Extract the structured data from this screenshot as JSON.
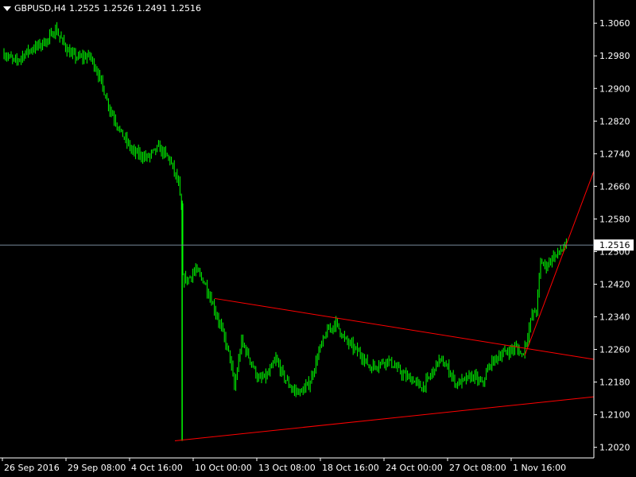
{
  "header": {
    "symbol": "GBPUSD,H4",
    "open": "1.2525",
    "high": "1.2526",
    "low": "1.2491",
    "close": "1.2516",
    "menu_icon": "triangle-down-icon"
  },
  "colors": {
    "background": "#000000",
    "candle": "#00ff00",
    "trendline": "#ff0000",
    "priceline": "#778899",
    "axis": "#ffffff"
  },
  "current_price_label": "1.2516",
  "chart_data": {
    "type": "candlestick",
    "ylim": [
      1.1994,
      1.3113
    ],
    "y_ticks": [
      "1.3060",
      "1.2980",
      "1.2900",
      "1.2820",
      "1.2740",
      "1.2660",
      "1.2580",
      "1.2500",
      "1.2420",
      "1.2340",
      "1.2260",
      "1.2180",
      "1.2100",
      "1.2020"
    ],
    "x_ticks": [
      "26 Sep 2016",
      "29 Sep 08:00",
      "4 Oct 16:00",
      "10 Oct 00:00",
      "13 Oct 08:00",
      "18 Oct 16:00",
      "24 Oct 00:00",
      "27 Oct 08:00",
      "1 Nov 16:00"
    ],
    "current_price": 1.2516,
    "close_path": [
      [
        0,
        1.2985
      ],
      [
        8,
        1.2965
      ],
      [
        16,
        1.299
      ],
      [
        24,
        1.3005
      ],
      [
        31,
        1.302
      ],
      [
        36,
        1.3045
      ],
      [
        40,
        1.302
      ],
      [
        46,
        1.2985
      ],
      [
        52,
        1.2975
      ],
      [
        60,
        1.298
      ],
      [
        66,
        1.2935
      ],
      [
        74,
        1.285
      ],
      [
        82,
        1.279
      ],
      [
        90,
        1.2745
      ],
      [
        100,
        1.273
      ],
      [
        108,
        1.2755
      ],
      [
        116,
        1.2725
      ],
      [
        122,
        1.2665
      ],
      [
        124,
        1.26
      ],
      [
        125,
        1.2435
      ],
      [
        128,
        1.243
      ],
      [
        134,
        1.2455
      ],
      [
        140,
        1.2425
      ],
      [
        146,
        1.237
      ],
      [
        152,
        1.231
      ],
      [
        158,
        1.224
      ],
      [
        161,
        1.2165
      ],
      [
        166,
        1.228
      ],
      [
        172,
        1.2235
      ],
      [
        178,
        1.2185
      ],
      [
        184,
        1.2195
      ],
      [
        190,
        1.2235
      ],
      [
        196,
        1.219
      ],
      [
        202,
        1.216
      ],
      [
        208,
        1.2155
      ],
      [
        214,
        1.218
      ],
      [
        220,
        1.2255
      ],
      [
        226,
        1.2305
      ],
      [
        232,
        1.2325
      ],
      [
        238,
        1.2285
      ],
      [
        244,
        1.2265
      ],
      [
        250,
        1.2245
      ],
      [
        256,
        1.2215
      ],
      [
        262,
        1.2225
      ],
      [
        268,
        1.2235
      ],
      [
        274,
        1.2215
      ],
      [
        280,
        1.2195
      ],
      [
        286,
        1.2185
      ],
      [
        292,
        1.2165
      ],
      [
        298,
        1.2195
      ],
      [
        304,
        1.2235
      ],
      [
        310,
        1.2215
      ],
      [
        316,
        1.2175
      ],
      [
        322,
        1.2185
      ],
      [
        328,
        1.2195
      ],
      [
        334,
        1.2175
      ],
      [
        340,
        1.2225
      ],
      [
        346,
        1.2245
      ],
      [
        352,
        1.2255
      ],
      [
        358,
        1.2265
      ],
      [
        362,
        1.2245
      ],
      [
        366,
        1.2295
      ],
      [
        369,
        1.2345
      ],
      [
        372,
        1.2355
      ],
      [
        375,
        1.2475
      ],
      [
        379,
        1.2465
      ],
      [
        383,
        1.2485
      ],
      [
        387,
        1.2495
      ],
      [
        390,
        1.2505
      ],
      [
        393,
        1.2516
      ]
    ],
    "trendlines": [
      {
        "points": [
          [
            "10 Oct 00:00",
            1.2385
          ],
          [
            "1 Nov 16:00",
            1.2263
          ]
        ],
        "extends_right": true
      },
      {
        "points": [
          [
            "4 Oct 16:00",
            1.2036
          ],
          [
            "1 Nov 16:00",
            1.2126
          ]
        ],
        "extends_right": true
      },
      {
        "points": [
          [
            "1 Nov 16:00",
            1.2245
          ],
          [
            "1 Nov 16:00",
            1.2505
          ]
        ],
        "extends_right": true
      }
    ]
  }
}
